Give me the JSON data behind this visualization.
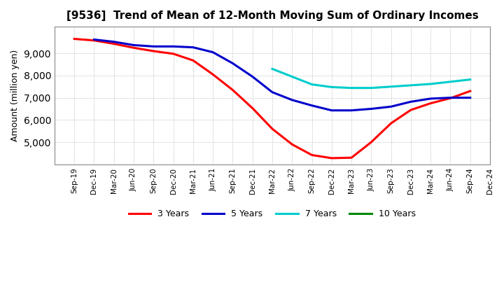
{
  "title": "[9536]  Trend of Mean of 12-Month Moving Sum of Ordinary Incomes",
  "ylabel": "Amount (million yen)",
  "background_color": "#ffffff",
  "plot_bg_color": "#ffffff",
  "grid_color": "#aaaaaa",
  "x_labels": [
    "Sep-19",
    "Dec-19",
    "Mar-20",
    "Jun-20",
    "Sep-20",
    "Dec-20",
    "Mar-21",
    "Jun-21",
    "Sep-21",
    "Dec-21",
    "Mar-22",
    "Jun-22",
    "Sep-22",
    "Dec-22",
    "Mar-23",
    "Jun-23",
    "Sep-23",
    "Dec-23",
    "Mar-24",
    "Jun-24",
    "Sep-24",
    "Dec-24"
  ],
  "ylim": [
    4000,
    10200
  ],
  "yticks": [
    5000,
    6000,
    7000,
    8000,
    9000
  ],
  "series": {
    "3 Years": {
      "color": "#ff0000",
      "data": [
        9650,
        9580,
        9430,
        9250,
        9100,
        8980,
        8680,
        8050,
        7350,
        6530,
        5600,
        4900,
        4420,
        4280,
        4300,
        5000,
        5850,
        6450,
        6750,
        6980,
        7300,
        null
      ]
    },
    "5 Years": {
      "color": "#0000cc",
      "data": [
        null,
        9620,
        9520,
        9370,
        9310,
        9310,
        9270,
        9050,
        8550,
        7950,
        7250,
        6900,
        6650,
        6430,
        6430,
        6500,
        6600,
        6820,
        6960,
        7000,
        7000,
        null
      ]
    },
    "7 Years": {
      "color": "#00cccc",
      "data": [
        null,
        null,
        null,
        null,
        null,
        null,
        null,
        null,
        null,
        null,
        8300,
        7950,
        7600,
        7480,
        7440,
        7440,
        7500,
        7560,
        7620,
        7720,
        7820,
        null
      ]
    },
    "10 Years": {
      "color": "#008800",
      "data": [
        null,
        null,
        null,
        null,
        null,
        null,
        null,
        null,
        null,
        null,
        null,
        null,
        null,
        null,
        null,
        null,
        null,
        null,
        null,
        null,
        null,
        null
      ]
    }
  },
  "legend_order": [
    "3 Years",
    "5 Years",
    "7 Years",
    "10 Years"
  ]
}
